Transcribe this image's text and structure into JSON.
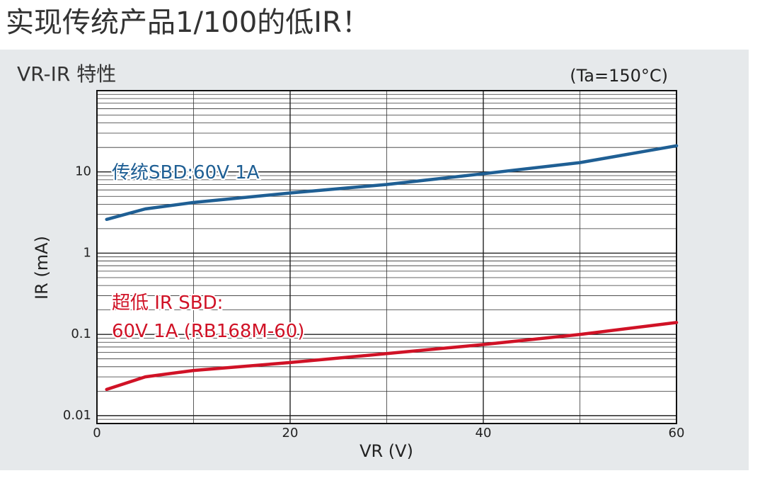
{
  "chart_data": {
    "type": "line",
    "heading": "实现传统产品1/100的低IR！",
    "title": "VR-IR 特性",
    "subtitle": "(Ta=150°C)",
    "x_label": "VR (V)",
    "y_label": "IR (mA)",
    "x": [
      1,
      5,
      10,
      20,
      30,
      40,
      50,
      60
    ],
    "series": [
      {
        "name": "传统SBD:60V 1A",
        "color": "#1f5f94",
        "values": [
          2.6,
          3.5,
          4.2,
          5.5,
          7,
          9.5,
          13,
          21
        ]
      },
      {
        "name": "超低 IR SBD:\n60V 1A (RB168M-60)",
        "color": "#d01226",
        "values": [
          0.021,
          0.03,
          0.036,
          0.045,
          0.058,
          0.075,
          0.1,
          0.14
        ]
      }
    ],
    "xlim": [
      0,
      60
    ],
    "xticks": [
      0,
      20,
      40,
      60
    ],
    "ylim": [
      0.008,
      100
    ],
    "yticks": [
      0.01,
      0.1,
      1,
      10
    ],
    "log_y": true,
    "grid": true,
    "minor_grid": true
  }
}
